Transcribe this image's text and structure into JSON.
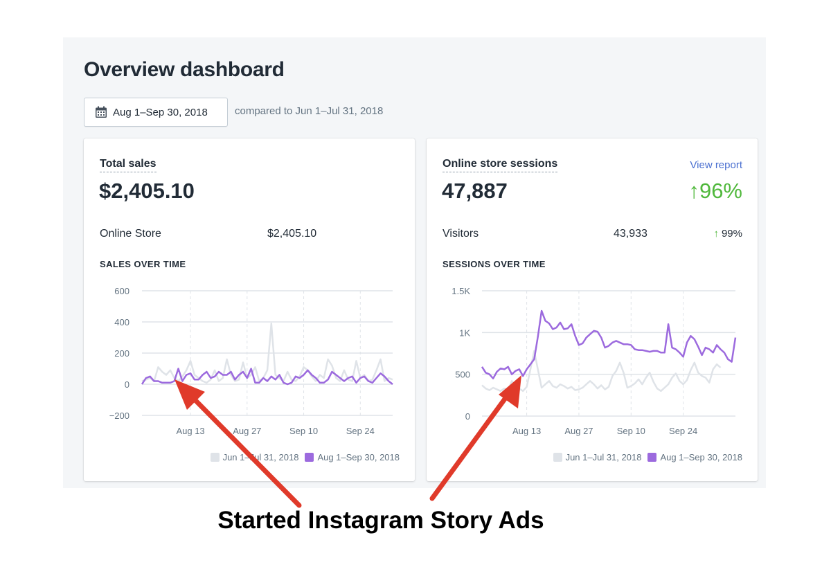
{
  "page": {
    "title": "Overview dashboard"
  },
  "date_range": {
    "label": "Aug 1–Sep 30, 2018",
    "comparison": "compared to Jun 1–Jul 31, 2018"
  },
  "sales_card": {
    "title": "Total sales",
    "total": "$2,405.10",
    "breakdown_label": "Online Store",
    "breakdown_value": "$2,405.10",
    "chart_heading": "SALES OVER TIME"
  },
  "sessions_card": {
    "title": "Online store sessions",
    "link": "View report",
    "total": "47,887",
    "change_arrow": "↑",
    "change_pct": "96%",
    "breakdown_label": "Visitors",
    "breakdown_value": "43,933",
    "breakdown_arrow": "↑",
    "breakdown_pct": "99%",
    "chart_heading": "SESSIONS OVER TIME"
  },
  "annotation": {
    "text": "Started Instagram Story Ads"
  },
  "colors": {
    "current": "#9c6ade",
    "previous": "#dfe3e8",
    "positive": "#50b83c",
    "link": "#4a6fd0",
    "arrow": "#e03a2a"
  },
  "chart_data": [
    {
      "type": "line",
      "title": "SALES OVER TIME",
      "xlabel": "",
      "ylabel": "",
      "ylim": [
        -200,
        600
      ],
      "yticks": [
        "600",
        "400",
        "200",
        "0",
        "−200"
      ],
      "ytick_values": [
        600,
        400,
        200,
        0,
        -200
      ],
      "xtick_labels": [
        "Aug 13",
        "Aug 27",
        "Sep 10",
        "Sep 24"
      ],
      "xtick_index": [
        12,
        26,
        40,
        54
      ],
      "grid": true,
      "legend": "bottom-right",
      "series": [
        {
          "name": "Jun 1–Jul 31, 2018",
          "color": "#dfe3e8",
          "values": [
            20,
            30,
            40,
            20,
            110,
            80,
            60,
            90,
            40,
            20,
            50,
            90,
            150,
            60,
            40,
            20,
            10,
            30,
            90,
            20,
            40,
            160,
            60,
            20,
            30,
            140,
            40,
            60,
            110,
            20,
            40,
            90,
            390,
            60,
            40,
            20,
            80,
            30,
            20,
            50,
            110,
            90,
            50,
            20,
            60,
            40,
            160,
            120,
            40,
            20,
            90,
            30,
            20,
            150,
            40,
            60,
            20,
            30,
            90,
            160,
            20,
            40,
            30
          ]
        },
        {
          "name": "Aug 1–Sep 30, 2018",
          "color": "#9c6ade",
          "values": [
            0,
            40,
            50,
            20,
            20,
            10,
            10,
            10,
            20,
            100,
            20,
            60,
            70,
            30,
            30,
            60,
            80,
            40,
            50,
            80,
            60,
            60,
            80,
            30,
            60,
            80,
            40,
            100,
            10,
            10,
            40,
            20,
            50,
            30,
            60,
            10,
            0,
            10,
            50,
            40,
            60,
            90,
            60,
            40,
            10,
            10,
            30,
            80,
            60,
            40,
            20,
            40,
            50,
            10,
            40,
            50,
            20,
            10,
            40,
            70,
            50,
            20,
            0
          ]
        }
      ]
    },
    {
      "type": "line",
      "title": "SESSIONS OVER TIME",
      "xlabel": "",
      "ylabel": "",
      "ylim": [
        0,
        1500
      ],
      "yticks": [
        "1.5K",
        "1K",
        "500",
        "0"
      ],
      "ytick_values": [
        1500,
        1000,
        500,
        0
      ],
      "xtick_labels": [
        "Aug 13",
        "Aug 27",
        "Sep 10",
        "Sep 24"
      ],
      "xtick_index": [
        12,
        26,
        40,
        54
      ],
      "grid": true,
      "legend": "bottom-right",
      "series": [
        {
          "name": "Jun 1–Jul 31, 2018",
          "color": "#dfe3e8",
          "values": [
            370,
            330,
            310,
            340,
            320,
            300,
            330,
            310,
            420,
            360,
            330,
            300,
            350,
            560,
            780,
            560,
            340,
            380,
            420,
            360,
            340,
            380,
            360,
            330,
            350,
            310,
            320,
            340,
            380,
            420,
            380,
            330,
            370,
            320,
            350,
            480,
            540,
            640,
            520,
            340,
            360,
            390,
            440,
            380,
            460,
            520,
            410,
            330,
            300,
            340,
            380,
            460,
            510,
            420,
            380,
            430,
            550,
            640,
            520,
            480,
            460,
            400,
            560,
            620,
            580
          ]
        },
        {
          "name": "Aug 1–Sep 30, 2018",
          "color": "#9c6ade",
          "values": [
            590,
            520,
            500,
            450,
            530,
            570,
            560,
            590,
            500,
            540,
            560,
            480,
            560,
            620,
            680,
            950,
            1260,
            1140,
            1110,
            1040,
            1060,
            1120,
            1040,
            1050,
            1100,
            960,
            850,
            870,
            940,
            980,
            1020,
            1010,
            940,
            820,
            840,
            880,
            900,
            880,
            860,
            860,
            850,
            800,
            790,
            790,
            780,
            770,
            780,
            780,
            760,
            760,
            1100,
            820,
            800,
            760,
            710,
            880,
            960,
            920,
            830,
            730,
            820,
            800,
            760,
            850,
            800,
            760,
            680,
            650,
            940
          ]
        }
      ]
    }
  ]
}
